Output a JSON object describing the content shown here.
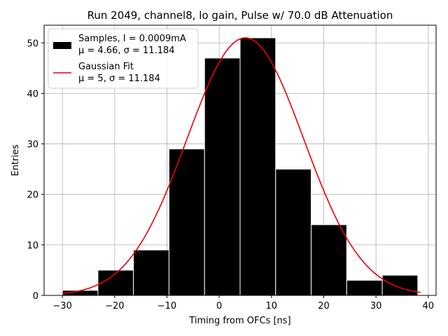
{
  "chart_data": {
    "type": "bar",
    "title": "Run 2049, channel8, lo gain, Pulse w/ 70.0 dB Attenuation",
    "xlabel": "Timing from OFCs [ns]",
    "ylabel": "Entries",
    "xlim": [
      -33.5,
      41.5
    ],
    "ylim": [
      0,
      53.5
    ],
    "xticks": [
      -30,
      -20,
      -10,
      0,
      10,
      20,
      30,
      40
    ],
    "yticks": [
      0,
      10,
      20,
      30,
      40,
      50
    ],
    "grid": true,
    "legend_position": "top-left",
    "bins": [
      {
        "x0": -30.0,
        "x1": -23.2,
        "value": 1
      },
      {
        "x0": -23.2,
        "x1": -16.4,
        "value": 5
      },
      {
        "x0": -16.4,
        "x1": -9.6,
        "value": 9
      },
      {
        "x0": -9.6,
        "x1": -2.8,
        "value": 29
      },
      {
        "x0": -2.8,
        "x1": 4.0,
        "value": 47
      },
      {
        "x0": 4.0,
        "x1": 10.8,
        "value": 51
      },
      {
        "x0": 10.8,
        "x1": 17.6,
        "value": 25
      },
      {
        "x0": 17.6,
        "x1": 24.4,
        "value": 14
      },
      {
        "x0": 24.4,
        "x1": 31.2,
        "value": 3
      },
      {
        "x0": 31.2,
        "x1": 38.0,
        "value": 4
      }
    ],
    "fit": {
      "mu": 5,
      "sigma": 11.184,
      "amplitude": 51,
      "x_start": -30,
      "x_end": 38.5
    },
    "series": [
      {
        "name_line1": "Samples, I = 0.0009mA",
        "name_line2": "μ = 4.66, σ = 11.184",
        "color": "#000000"
      },
      {
        "name_line1": "Gaussian Fit",
        "name_line2": "μ = 5, σ = 11.184",
        "color": "#e8000b"
      }
    ]
  }
}
